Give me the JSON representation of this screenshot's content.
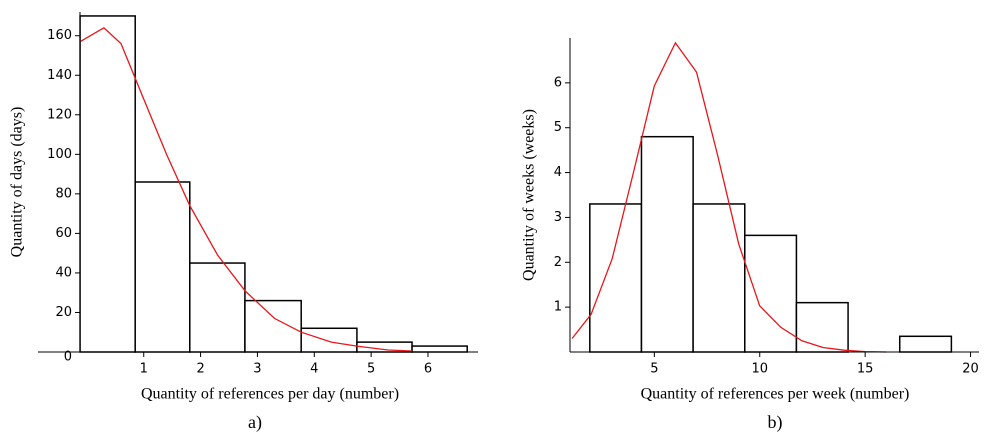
{
  "chart_data": [
    {
      "type": "histogram",
      "caption": "a)",
      "x_label": "Quantity of references per day (number)",
      "y_label": "Quantity of days (days)",
      "bins": [
        -0.12,
        0.85,
        1.81,
        2.78,
        3.77,
        4.75,
        5.72,
        6.69
      ],
      "counts": [
        170,
        86,
        45,
        26,
        12,
        5,
        3
      ],
      "bar_color": "#ffffff",
      "edge_color": "#000000",
      "curve": {
        "color": "#e8161b",
        "x": [
          -0.12,
          0.3,
          0.6,
          1.0,
          1.4,
          1.81,
          2.3,
          2.78,
          3.3,
          3.77,
          4.3,
          4.75,
          5.3,
          5.72
        ],
        "values": [
          157,
          164,
          156,
          128,
          100,
          74,
          49,
          31,
          17,
          10,
          5,
          3,
          1,
          0.5
        ]
      },
      "xlim": [
        -0.86,
        6.88
      ],
      "ylim": [
        0,
        172
      ],
      "xticks": [
        1,
        2,
        3,
        4,
        5,
        6
      ],
      "yticks": [
        0,
        20,
        40,
        60,
        80,
        100,
        120,
        140,
        160
      ]
    },
    {
      "type": "histogram",
      "caption": "b)",
      "x_label": "Quantity of references per week (number)",
      "y_label": "Quantity of weeks (weeks)",
      "bins": [
        1.94,
        4.39,
        6.84,
        9.29,
        11.74,
        14.19,
        16.64,
        19.09
      ],
      "counts": [
        3.3,
        4.8,
        3.3,
        2.6,
        1.1,
        0,
        0.35
      ],
      "bar_color": "#ffffff",
      "edge_color": "#000000",
      "curve": {
        "color": "#e8161b",
        "x": [
          1.1,
          2,
          3,
          4,
          5,
          6,
          7,
          8,
          9,
          10,
          11,
          12,
          13,
          14,
          15,
          16
        ],
        "values": [
          0.3,
          0.84,
          2.08,
          3.98,
          5.93,
          6.89,
          6.24,
          4.39,
          2.41,
          1.03,
          0.55,
          0.25,
          0.1,
          0.04,
          0.01,
          0
        ]
      },
      "xlim": [
        1,
        20.4
      ],
      "ylim": [
        0,
        7
      ],
      "xticks": [
        5,
        10,
        15,
        20
      ],
      "yticks": [
        1,
        2,
        3,
        4,
        5,
        6
      ]
    }
  ]
}
